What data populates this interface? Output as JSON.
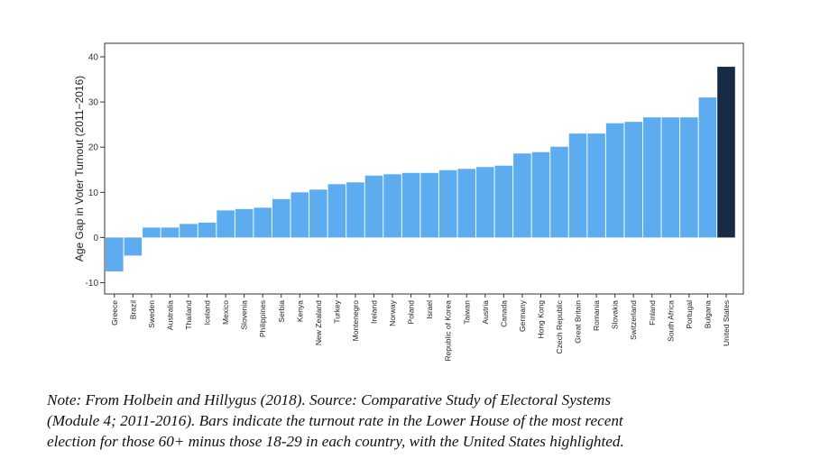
{
  "chart_data": {
    "type": "bar",
    "title": "",
    "xlabel": "",
    "ylabel": "Age Gap in Voter Turnout (2011−2016)",
    "ylim": [
      -12.5,
      43
    ],
    "yticks": [
      -10,
      0,
      10,
      20,
      30,
      40
    ],
    "grid": false,
    "highlight": "United States",
    "colors": {
      "bar": "#5dacf0",
      "highlight": "#172a46",
      "axis": "#333333"
    },
    "categories": [
      "Greece",
      "Brazil",
      "Sweden",
      "Australia",
      "Thailand",
      "Iceland",
      "Mexico",
      "Slovenia",
      "Philippines",
      "Serbia",
      "Kenya",
      "New Zealand",
      "Turkey",
      "Montenegro",
      "Ireland",
      "Norway",
      "Poland",
      "Israel",
      "Republic of Korea",
      "Taiwan",
      "Austria",
      "Canada",
      "Germany",
      "Hong Kong",
      "Czech Republic",
      "Great Britain",
      "Romania",
      "Slovakia",
      "Switzerland",
      "Finland",
      "South Africa",
      "Portugal",
      "Bulgaria",
      "United States"
    ],
    "values": [
      -7.5,
      -4,
      2.2,
      2.2,
      3,
      3.3,
      6,
      6.3,
      6.6,
      8.5,
      10,
      10.6,
      11.8,
      12.2,
      13.7,
      14,
      14.3,
      14.3,
      14.9,
      15.2,
      15.6,
      15.9,
      18.6,
      18.9,
      20.1,
      23,
      23,
      25.3,
      25.6,
      26.6,
      26.6,
      26.6,
      31,
      37.8
    ]
  },
  "caption": {
    "lines": [
      "Note: From Holbein and Hillygus (2018). Source: Comparative Study of Electoral Systems",
      "(Module 4; 2011-2016). Bars indicate the turnout rate in the Lower House of the most recent",
      "election for those 60+ minus those 18-29 in each country, with the United States highlighted."
    ]
  }
}
